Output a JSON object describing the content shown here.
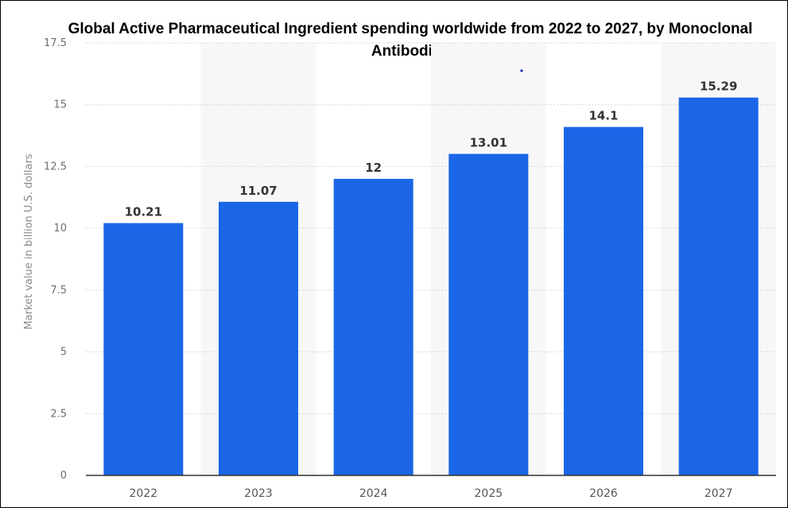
{
  "chart_data": {
    "type": "bar",
    "title": "Global Active Pharmaceutical Ingredient spending worldwide from 2022 to 2027, by Monoclonal Antibodies",
    "xlabel": "",
    "ylabel": "Market value in billion U.S. dollars",
    "categories": [
      "2022",
      "2023",
      "2024",
      "2025",
      "2026",
      "2027"
    ],
    "values": [
      10.21,
      11.07,
      12,
      13.01,
      14.1,
      15.29
    ],
    "value_labels": [
      "10.21",
      "11.07",
      "12",
      "13.01",
      "14.1",
      "15.29"
    ],
    "ylim": [
      0,
      17.5
    ],
    "yticks": [
      0,
      2.5,
      5,
      7.5,
      10,
      12.5,
      15,
      17.5
    ],
    "ytick_labels": [
      "0",
      "2.5",
      "5",
      "7.5",
      "10",
      "12.5",
      "15",
      "17.5"
    ],
    "grid": true,
    "legend": "none",
    "colors": {
      "bar": "#1a66e6",
      "band": "#f7f7f7",
      "grid": "#d6d6d6",
      "axis": "#333333"
    }
  }
}
